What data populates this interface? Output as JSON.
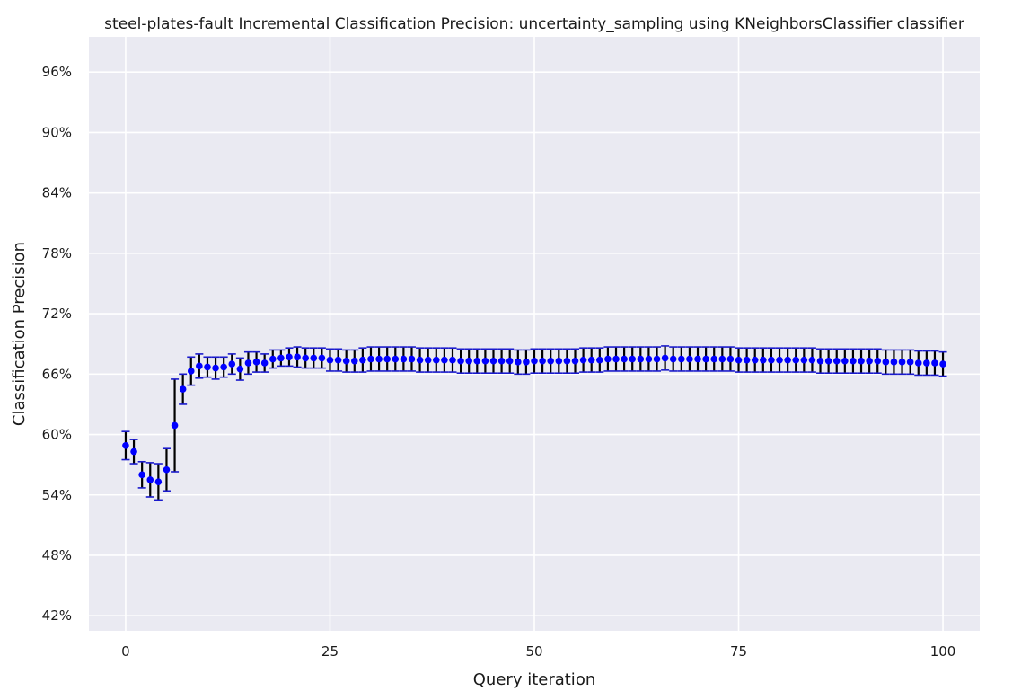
{
  "chart_data": {
    "type": "scatter",
    "title": "steel-plates-fault Incremental Classification Precision: uncertainty_sampling using KNeighborsClassifier classifier",
    "xlabel": "Query iteration",
    "ylabel": "Classification Precision",
    "xlim": [
      -4.5,
      104.5
    ],
    "ylim": [
      0.405,
      0.995
    ],
    "x_ticks": [
      0,
      25,
      50,
      75,
      100
    ],
    "x_tick_labels": [
      "0",
      "25",
      "50",
      "75",
      "100"
    ],
    "y_ticks": [
      0.42,
      0.48,
      0.54,
      0.6,
      0.66,
      0.72,
      0.78,
      0.84,
      0.9,
      0.96
    ],
    "y_tick_labels": [
      "42%",
      "48%",
      "54%",
      "60%",
      "66%",
      "72%",
      "78%",
      "84%",
      "90%",
      "96%"
    ],
    "grid": true,
    "colors": {
      "background": "#eaeaf2",
      "grid": "#ffffff",
      "marker": "#0000ff",
      "error_bar": "#000000",
      "cap": "#1a1acd"
    },
    "series": [
      {
        "x": [
          0,
          1,
          2,
          3,
          4,
          5,
          6,
          7,
          8,
          9,
          10,
          11,
          12,
          13,
          14,
          15,
          16,
          17,
          18,
          19,
          20,
          21,
          22,
          23,
          24,
          25,
          26,
          27,
          28,
          29,
          30,
          31,
          32,
          33,
          34,
          35,
          36,
          37,
          38,
          39,
          40,
          41,
          42,
          43,
          44,
          45,
          46,
          47,
          48,
          49,
          50,
          51,
          52,
          53,
          54,
          55,
          56,
          57,
          58,
          59,
          60,
          61,
          62,
          63,
          64,
          65,
          66,
          67,
          68,
          69,
          70,
          71,
          72,
          73,
          74,
          75,
          76,
          77,
          78,
          79,
          80,
          81,
          82,
          83,
          84,
          85,
          86,
          87,
          88,
          89,
          90,
          91,
          92,
          93,
          94,
          95,
          96,
          97,
          98,
          99,
          100
        ],
        "y": [
          0.589,
          0.583,
          0.56,
          0.555,
          0.553,
          0.565,
          0.609,
          0.645,
          0.663,
          0.668,
          0.667,
          0.666,
          0.667,
          0.67,
          0.665,
          0.671,
          0.672,
          0.671,
          0.675,
          0.676,
          0.677,
          0.677,
          0.676,
          0.676,
          0.676,
          0.674,
          0.674,
          0.673,
          0.673,
          0.674,
          0.675,
          0.675,
          0.675,
          0.675,
          0.675,
          0.675,
          0.674,
          0.674,
          0.674,
          0.674,
          0.674,
          0.673,
          0.673,
          0.673,
          0.673,
          0.673,
          0.673,
          0.673,
          0.672,
          0.672,
          0.673,
          0.673,
          0.673,
          0.673,
          0.673,
          0.673,
          0.674,
          0.674,
          0.674,
          0.675,
          0.675,
          0.675,
          0.675,
          0.675,
          0.675,
          0.675,
          0.676,
          0.675,
          0.675,
          0.675,
          0.675,
          0.675,
          0.675,
          0.675,
          0.675,
          0.674,
          0.674,
          0.674,
          0.674,
          0.674,
          0.674,
          0.674,
          0.674,
          0.674,
          0.674,
          0.673,
          0.673,
          0.673,
          0.673,
          0.673,
          0.673,
          0.673,
          0.673,
          0.672,
          0.672,
          0.672,
          0.672,
          0.671,
          0.671,
          0.671,
          0.67
        ],
        "err": [
          0.014,
          0.012,
          0.013,
          0.017,
          0.018,
          0.021,
          0.046,
          0.015,
          0.014,
          0.012,
          0.01,
          0.011,
          0.01,
          0.01,
          0.011,
          0.011,
          0.01,
          0.009,
          0.009,
          0.008,
          0.009,
          0.01,
          0.01,
          0.01,
          0.01,
          0.011,
          0.011,
          0.011,
          0.011,
          0.012,
          0.012,
          0.012,
          0.012,
          0.012,
          0.012,
          0.012,
          0.012,
          0.012,
          0.012,
          0.012,
          0.012,
          0.012,
          0.012,
          0.012,
          0.012,
          0.012,
          0.012,
          0.012,
          0.012,
          0.012,
          0.012,
          0.012,
          0.012,
          0.012,
          0.012,
          0.012,
          0.012,
          0.012,
          0.012,
          0.012,
          0.012,
          0.012,
          0.012,
          0.012,
          0.012,
          0.012,
          0.012,
          0.012,
          0.012,
          0.012,
          0.012,
          0.012,
          0.012,
          0.012,
          0.012,
          0.012,
          0.012,
          0.012,
          0.012,
          0.012,
          0.012,
          0.012,
          0.012,
          0.012,
          0.012,
          0.012,
          0.012,
          0.012,
          0.012,
          0.012,
          0.012,
          0.012,
          0.012,
          0.012,
          0.012,
          0.012,
          0.012,
          0.012,
          0.012,
          0.012,
          0.012
        ]
      }
    ]
  }
}
